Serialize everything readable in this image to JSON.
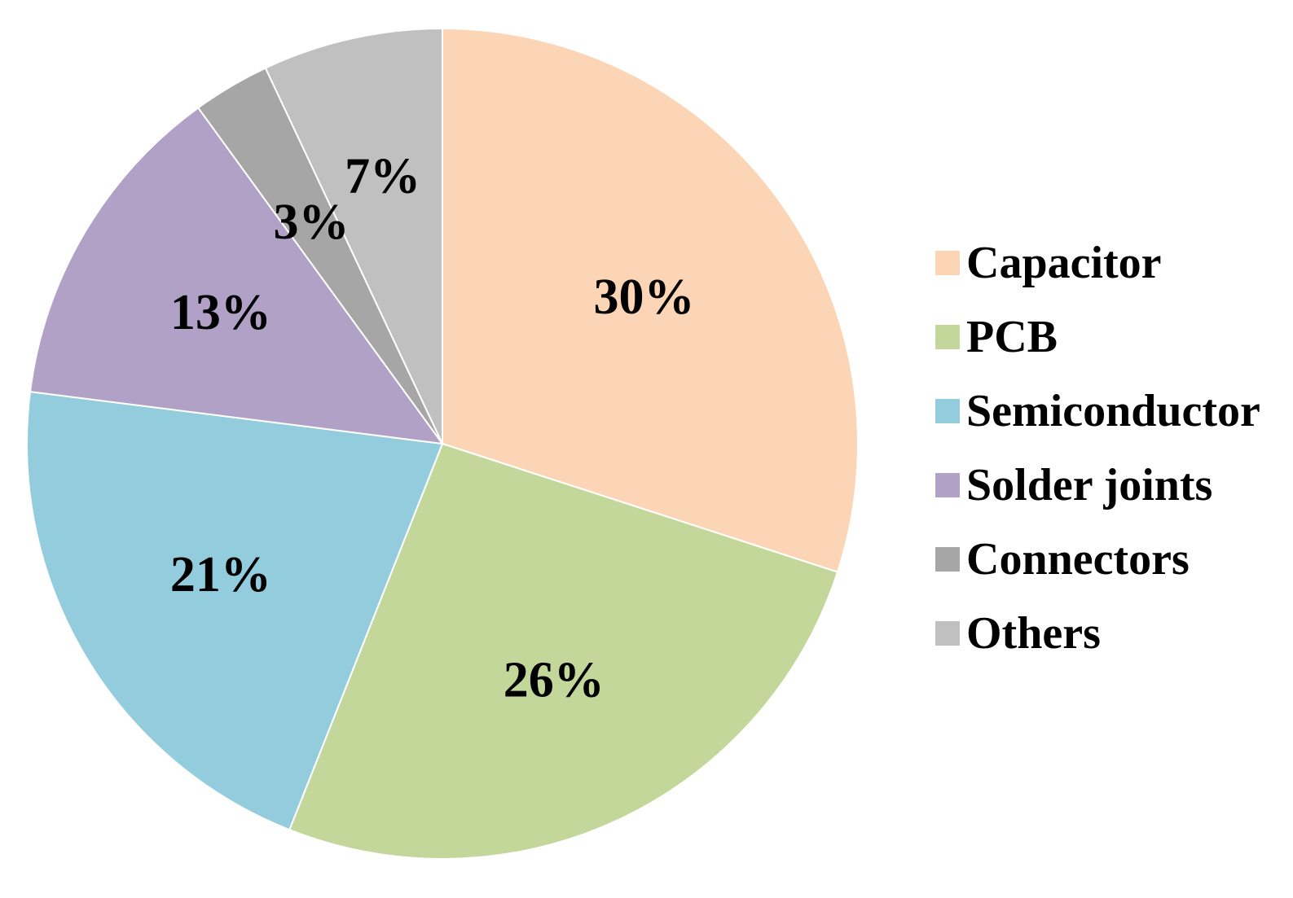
{
  "chart_data": {
    "type": "pie",
    "categories": [
      "Capacitor",
      "PCB",
      "Semiconductor",
      "Solder joints",
      "Connectors",
      "Others"
    ],
    "values": [
      30,
      26,
      21,
      13,
      3,
      7
    ],
    "labels": [
      "30%",
      "26%",
      "21%",
      "13%",
      "3%",
      "7%"
    ],
    "colors": [
      "#FBD5B5",
      "#C4D79B",
      "#93CDDD",
      "#B2A1C7",
      "#A6A6A6",
      "#C0C0C0"
    ],
    "start_angle": "12 o'clock",
    "direction": "clockwise",
    "legend": {
      "position": "right",
      "items": [
        "Capacitor",
        "PCB",
        "Semiconductor",
        "Solder joints",
        "Connectors",
        "Others"
      ]
    }
  }
}
